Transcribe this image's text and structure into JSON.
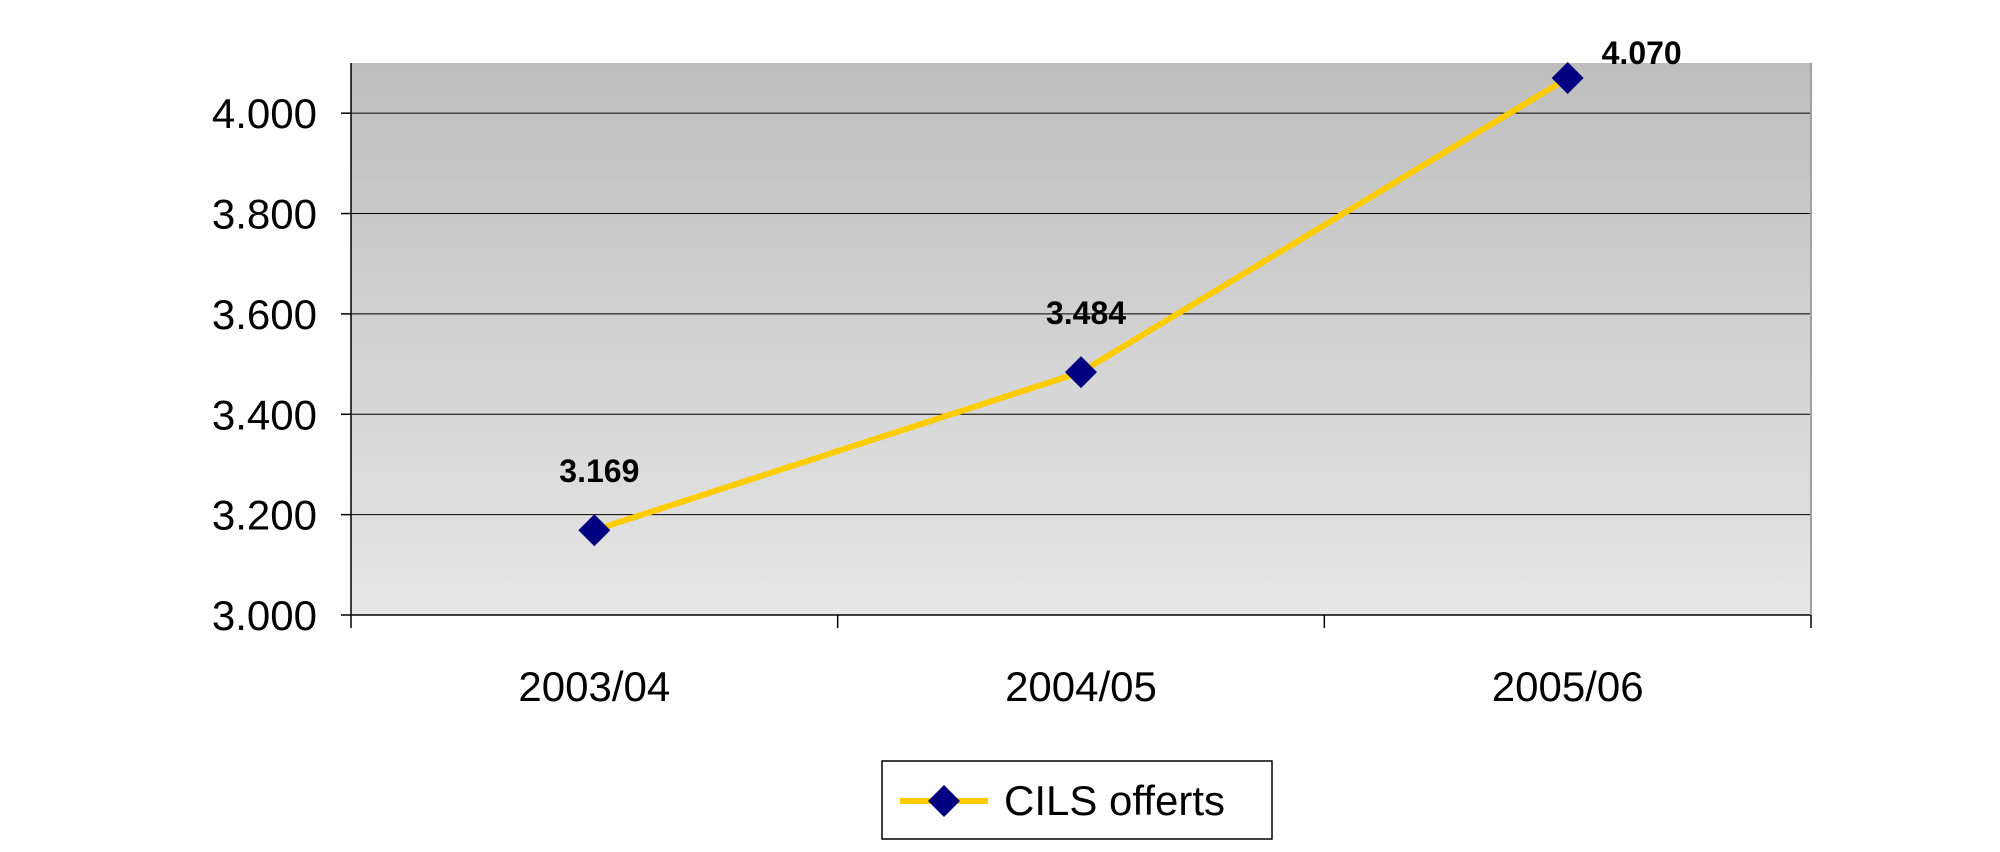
{
  "chart_data": {
    "type": "line",
    "title": "",
    "xlabel": "",
    "ylabel": "",
    "categories": [
      "2003/04",
      "2004/05",
      "2005/06"
    ],
    "series": [
      {
        "name": "CILS offerts",
        "values": [
          3169,
          3484,
          4070
        ],
        "value_labels": [
          "3.169",
          "3.484",
          "4.070"
        ],
        "line_color": "#FFCC00",
        "marker": "diamond",
        "marker_color": "#000080"
      }
    ],
    "ylim": [
      3000,
      4100
    ],
    "yticks": [
      3000,
      3200,
      3400,
      3600,
      3800,
      4000
    ],
    "ytick_labels": [
      "3.000",
      "3.200",
      "3.400",
      "3.600",
      "3.800",
      "4.000"
    ],
    "grid": true,
    "legend": "bottom-center",
    "plot_background": "gradient gray (dark top to light bottom)"
  }
}
